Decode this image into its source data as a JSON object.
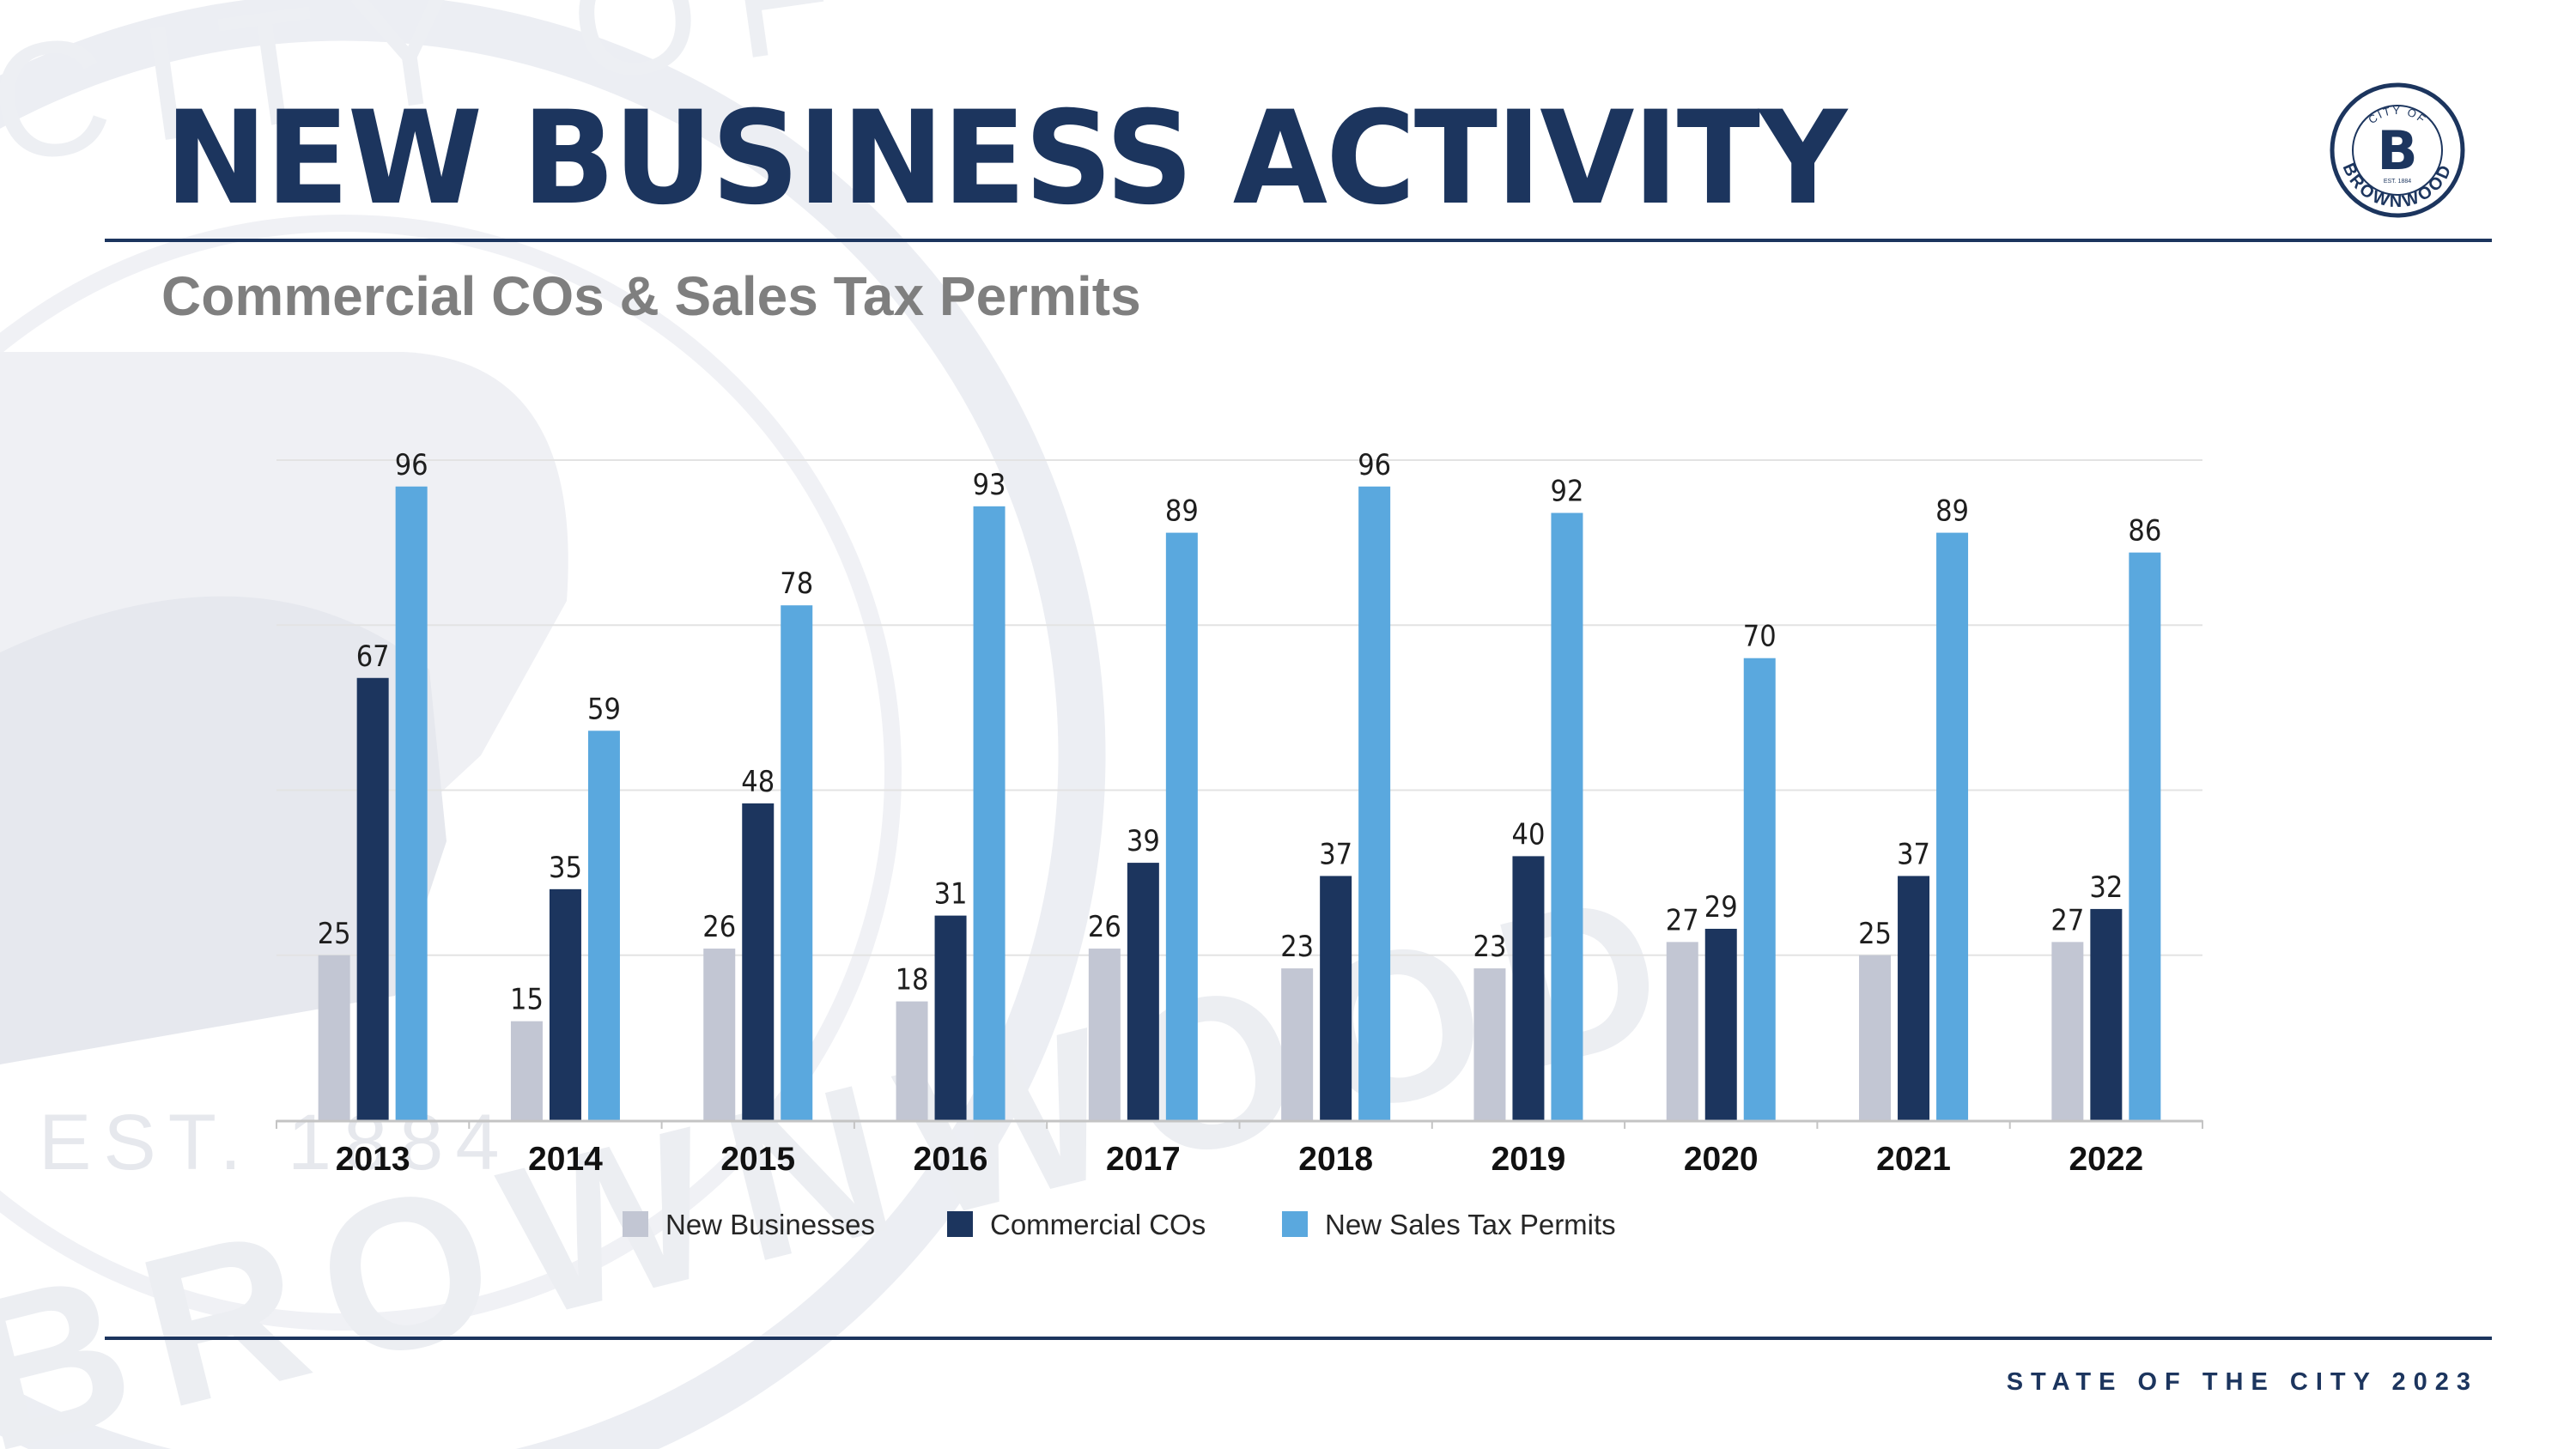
{
  "header": {
    "title": "NEW BUSINESS ACTIVITY",
    "subtitle": "Commercial COs & Sales Tax Permits"
  },
  "logo": {
    "top_text": "CITY OF",
    "letter": "B",
    "est": "EST. 1884",
    "bottom_text": "BROWNWOOD"
  },
  "background": {
    "seal_text_top": "CITY OF",
    "seal_est": "EST. 1884",
    "seal_text_bottom": "BROWNWOOD"
  },
  "footer": {
    "text": "STATE OF THE CITY 2023"
  },
  "colors": {
    "navy": "#1c355e",
    "new_businesses": "#c2c6d3",
    "commercial_cos": "#1c355e",
    "new_sales_tax_permits": "#5aa8de"
  },
  "chart_data": {
    "type": "bar",
    "title": "Commercial COs & Sales Tax Permits",
    "xlabel": "",
    "ylabel": "",
    "ylim": [
      0,
      100
    ],
    "grid": true,
    "legend_position": "bottom",
    "categories": [
      "2013",
      "2014",
      "2015",
      "2016",
      "2017",
      "2018",
      "2019",
      "2020",
      "2021",
      "2022"
    ],
    "series": [
      {
        "name": "New Businesses",
        "color": "#c2c6d3",
        "values": [
          25,
          15,
          26,
          18,
          26,
          23,
          23,
          27,
          25,
          27
        ]
      },
      {
        "name": "Commercial COs",
        "color": "#1c355e",
        "values": [
          67,
          35,
          48,
          31,
          39,
          37,
          40,
          29,
          37,
          32
        ]
      },
      {
        "name": "New Sales Tax Permits",
        "color": "#5aa8de",
        "values": [
          96,
          59,
          78,
          93,
          89,
          96,
          92,
          70,
          89,
          86
        ]
      }
    ]
  }
}
